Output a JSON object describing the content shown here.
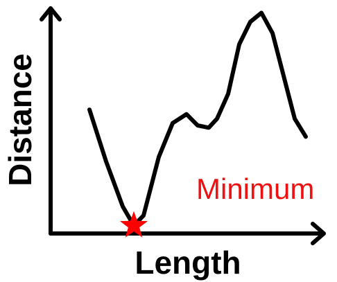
{
  "chart_data": {
    "type": "line",
    "title": "",
    "xlabel": "Length",
    "ylabel": "Distance",
    "xlim": [
      0,
      10
    ],
    "ylim": [
      0,
      10
    ],
    "grid": false,
    "legend": "none",
    "series": [
      {
        "color": "#000000",
        "x": [
          1.4,
          2.0,
          2.6,
          3.0,
          3.35,
          3.9,
          4.4,
          4.9,
          5.3,
          5.7,
          6.0,
          6.4,
          6.8,
          7.2,
          7.6,
          8.0,
          8.4,
          8.8,
          9.2
        ],
        "y": [
          5.5,
          3.2,
          1.2,
          0.35,
          0.8,
          3.4,
          4.9,
          5.3,
          4.8,
          4.7,
          5.1,
          6.2,
          8.4,
          9.4,
          9.8,
          8.9,
          7.0,
          5.1,
          4.3
        ]
      }
    ],
    "annotations": [
      {
        "text": "Minimum",
        "color": "#ee1111"
      }
    ],
    "marker": {
      "shape": "star",
      "color": "#ff0000",
      "x": 3.0,
      "y": 0.35
    }
  }
}
